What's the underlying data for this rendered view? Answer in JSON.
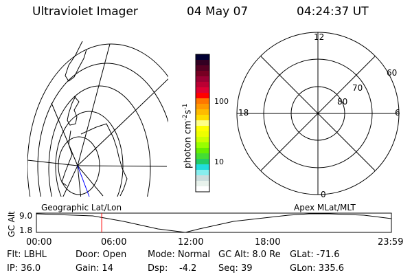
{
  "header": {
    "instrument": "Ultraviolet Imager",
    "date": "04 May 07",
    "time": "04:24:37 UT"
  },
  "colorbar": {
    "label": "photon cm",
    "label_sup1": "-2",
    "label_mid": "s",
    "label_sup2": "-1",
    "ticks": [
      "100",
      "10"
    ],
    "colors": [
      "#000033",
      "#330022",
      "#550022",
      "#770022",
      "#990033",
      "#bb0033",
      "#dd0033",
      "#ff0000",
      "#ff7700",
      "#ff9900",
      "#ffbb00",
      "#ffdd00",
      "#ffff88",
      "#ffff00",
      "#eeff00",
      "#ccff00",
      "#99ff00",
      "#66ee00",
      "#44dd33",
      "#22cc66",
      "#22dddd",
      "#88eeee",
      "#ccdddd",
      "#e8f2ec",
      "#ffffff"
    ]
  },
  "geo_map": {
    "label": "Geographic Lat/Lon"
  },
  "polar_plot": {
    "label": "Apex MLat/MLT",
    "mlt_labels": [
      "12",
      "18",
      "6",
      "0"
    ],
    "lat_labels": [
      "60",
      "70",
      "80"
    ]
  },
  "altitude_plot": {
    "ylabel": "GC Alt",
    "yticks": [
      "9.0",
      "1.8"
    ],
    "xticks": [
      "00:00",
      "06:00",
      "12:00",
      "18:00",
      "23:59"
    ],
    "current_time_fraction": 0.184,
    "marker_color": "#ff0000"
  },
  "status": {
    "filter": "Flt: LBHL",
    "ip": "IP: 36.0",
    "door": "Door: Open",
    "gain": "Gain: 14",
    "mode": "Mode: Normal",
    "dsp": "Dsp:    -4.2",
    "gc_alt": "GC Alt: 8.0 Re",
    "seq": "Seq: 39",
    "glat": "GLat: -71.6",
    "glon": "GLon: 335.6"
  }
}
